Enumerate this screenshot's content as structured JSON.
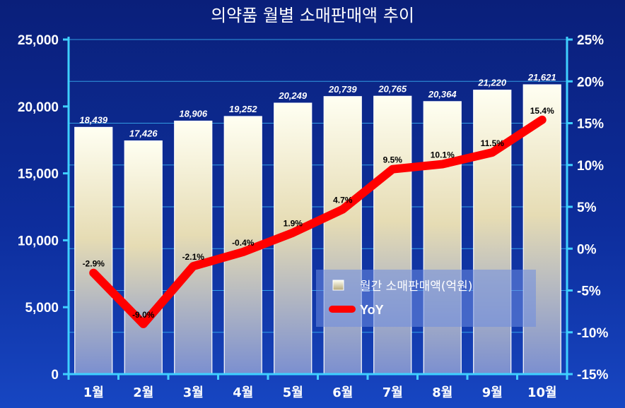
{
  "chart_data": {
    "type": "bar",
    "title": "의약품 월별 소매판매액 추이",
    "categories": [
      "1월",
      "2월",
      "3월",
      "4월",
      "5월",
      "6월",
      "7월",
      "8월",
      "9월",
      "10월"
    ],
    "series": [
      {
        "name": "월간 소매판매액(억원)",
        "type": "bar",
        "axis": "left",
        "values": [
          18439,
          17426,
          18906,
          19252,
          20249,
          20739,
          20765,
          20364,
          21220,
          21621
        ],
        "labels": [
          "18,439",
          "17,426",
          "18,906",
          "19,252",
          "20,249",
          "20,739",
          "20,765",
          "20,364",
          "21,220",
          "21,621"
        ]
      },
      {
        "name": "YoY",
        "type": "line",
        "axis": "right",
        "values": [
          -2.9,
          -9.0,
          -2.1,
          -0.4,
          1.9,
          4.7,
          9.5,
          10.1,
          11.5,
          15.4
        ],
        "labels": [
          "-2.9%",
          "-9.0%",
          "-2.1%",
          "-0.4%",
          "1.9%",
          "4.7%",
          "9.5%",
          "10.1%",
          "11.5%",
          "15.4%"
        ]
      }
    ],
    "y_left": {
      "range": [
        0,
        25000
      ],
      "ticks": [
        0,
        5000,
        10000,
        15000,
        20000,
        25000
      ],
      "tick_labels": [
        "0",
        "5,000",
        "10,000",
        "15,000",
        "20,000",
        "25,000"
      ]
    },
    "y_right": {
      "range": [
        -15,
        25
      ],
      "ticks": [
        -15,
        -10,
        -5,
        0,
        5,
        10,
        15,
        20,
        25
      ],
      "tick_labels": [
        "-15%",
        "-10%",
        "-5%",
        "0%",
        "5%",
        "10%",
        "15%",
        "20%",
        "25%"
      ]
    },
    "grid": true,
    "legend_position": "bottom-right",
    "colors": {
      "bar_top": "#fffff0",
      "bar_bottom": "#6f86c8",
      "line": "#ff0000",
      "grid": "#3fc2ff",
      "axis": "#3fd0ff"
    }
  }
}
